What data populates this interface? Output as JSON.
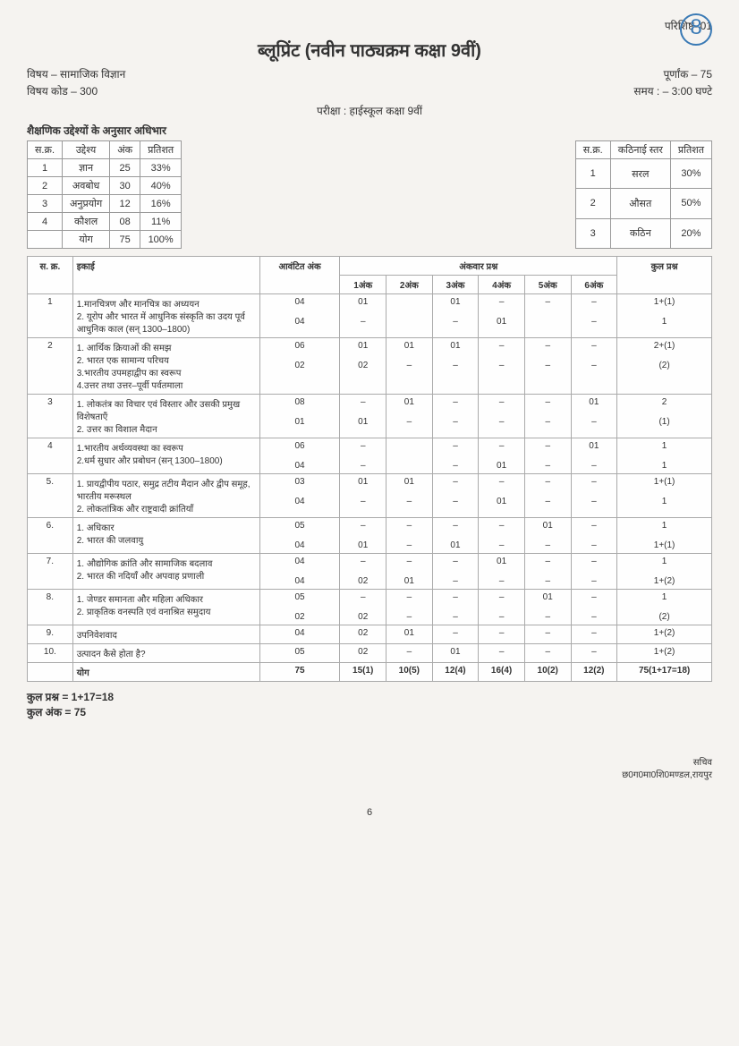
{
  "corner_mark": "8",
  "appendix": "परिशिष्ट–01",
  "title": "ब्लूप्रिंट (नवीन पाठ्यक्रम कक्षा 9वीं)",
  "subject_label": "विषय – सामाजिक विज्ञान",
  "subject_code": "विषय कोड – 300",
  "full_marks": "पूर्णांक – 75",
  "time": "समय : – 3:00 घण्टे",
  "exam_line": "परीक्षा : हाईस्कूल कक्षा 9वीं",
  "section_title": "शैक्षणिक उद्देश्यों के अनुसार अधिभार",
  "objective_table": {
    "headers": [
      "स.क्र.",
      "उद्देश्य",
      "अंक",
      "प्रतिशत"
    ],
    "rows": [
      [
        "1",
        "ज्ञान",
        "25",
        "33%"
      ],
      [
        "2",
        "अवबोध",
        "30",
        "40%"
      ],
      [
        "3",
        "अनुप्रयोग",
        "12",
        "16%"
      ],
      [
        "4",
        "कौशल",
        "08",
        "11%"
      ],
      [
        "",
        "योग",
        "75",
        "100%"
      ]
    ]
  },
  "difficulty_table": {
    "headers": [
      "स.क्र.",
      "कठिनाई स्तर",
      "प्रतिशत"
    ],
    "rows": [
      [
        "1",
        "सरल",
        "30%"
      ],
      [
        "2",
        "औसत",
        "50%"
      ],
      [
        "3",
        "कठिन",
        "20%"
      ]
    ]
  },
  "main_table": {
    "header1": [
      "स.\nक्र.",
      "इकाई",
      "आवंटित\nअंक",
      "अंकवार प्रश्न",
      "कुल प्रश्न"
    ],
    "header2": [
      "1अंक",
      "2अंक",
      "3अंक",
      "4अंक",
      "5अंक",
      "6अंक"
    ],
    "rows": [
      {
        "sn": "1",
        "unit": "1.मानचित्रण और मानचित्र का अध्ययन\n2. यूरोप और भारत में आधुनिक संस्कृति का उदय पूर्व आधुनिक काल (सन् 1300–1800)",
        "marks": [
          "04",
          "04"
        ],
        "m1": [
          "01",
          "–"
        ],
        "m2": [
          "",
          ""
        ],
        "m3": [
          "01",
          "–"
        ],
        "m4": [
          "–",
          "01"
        ],
        "m5": [
          "–",
          ""
        ],
        "m6": [
          "–",
          "–"
        ],
        "total": [
          "1+(1)",
          "1"
        ]
      },
      {
        "sn": "2",
        "unit": "1. आर्थिक क्रियाओं की समझ\n2. भारत एक सामान्य परिचय\n3.भारतीय उपमहाद्वीप का स्वरूप\n4.उत्तर तथा उत्तर–पूर्वी पर्वतमाला",
        "marks": [
          "06",
          "02"
        ],
        "m1": [
          "01",
          "02"
        ],
        "m2": [
          "01",
          "–"
        ],
        "m3": [
          "01",
          "–"
        ],
        "m4": [
          "–",
          "–"
        ],
        "m5": [
          "–",
          "–"
        ],
        "m6": [
          "–",
          "–"
        ],
        "total": [
          "2+(1)",
          "(2)"
        ]
      },
      {
        "sn": "3",
        "unit": "1. लोकतंत्र का विचार एवं विस्तार और उसकी प्रमुख विशेषताएँ\n2. उत्तर का विशाल मैदान",
        "marks": [
          "08",
          "01"
        ],
        "m1": [
          "–",
          "01"
        ],
        "m2": [
          "01",
          "–"
        ],
        "m3": [
          "–",
          "–"
        ],
        "m4": [
          "–",
          "–"
        ],
        "m5": [
          "–",
          "–"
        ],
        "m6": [
          "01",
          "–"
        ],
        "total": [
          "2",
          "(1)"
        ]
      },
      {
        "sn": "4",
        "unit": "1.भारतीय अर्थव्यवस्था का स्वरूप\n2.धर्म सुधार और प्रबोधन (सन् 1300–1800)",
        "marks": [
          "06",
          "04"
        ],
        "m1": [
          "–",
          "–"
        ],
        "m2": [
          "",
          ""
        ],
        "m3": [
          "–",
          "–"
        ],
        "m4": [
          "–",
          "01"
        ],
        "m5": [
          "–",
          "–"
        ],
        "m6": [
          "01",
          "–"
        ],
        "total": [
          "1",
          "1"
        ]
      },
      {
        "sn": "5.",
        "unit": "1. प्रायद्वीपीय पठार, समुद्र तटीय मैदान और द्वीप समूह, भारतीय मरूस्थल\n2. लोकतांत्रिक और राष्ट्रवादी क्रांतियाँ",
        "marks": [
          "03",
          "04"
        ],
        "m1": [
          "01",
          "–"
        ],
        "m2": [
          "01",
          "–"
        ],
        "m3": [
          "–",
          "–"
        ],
        "m4": [
          "–",
          "01"
        ],
        "m5": [
          "–",
          "–"
        ],
        "m6": [
          "–",
          "–"
        ],
        "total": [
          "1+(1)",
          "1"
        ]
      },
      {
        "sn": "6.",
        "unit": "1. अधिकार\n2. भारत की जलवायु",
        "marks": [
          "05",
          "04"
        ],
        "m1": [
          "–",
          "01"
        ],
        "m2": [
          "–",
          "–"
        ],
        "m3": [
          "–",
          "01"
        ],
        "m4": [
          "–",
          "–"
        ],
        "m5": [
          "01",
          "–"
        ],
        "m6": [
          "–",
          "–"
        ],
        "total": [
          "1",
          "1+(1)"
        ]
      },
      {
        "sn": "7.",
        "unit": "1. औद्योगिक क्रांति और सामाजिक बदलाव\n2. भारत की नदियाँ और अपवाह प्रणाली",
        "marks": [
          "04",
          "04"
        ],
        "m1": [
          "–",
          "02"
        ],
        "m2": [
          "–",
          "01"
        ],
        "m3": [
          "–",
          "–"
        ],
        "m4": [
          "01",
          "–"
        ],
        "m5": [
          "–",
          "–"
        ],
        "m6": [
          "–",
          "–"
        ],
        "total": [
          "1",
          "1+(2)"
        ]
      },
      {
        "sn": "8.",
        "unit": "1. जेण्डर समानता और महिला अधिकार\n2. प्राकृतिक वनस्पति एवं वनाश्रित समुदाय",
        "marks": [
          "05",
          "02"
        ],
        "m1": [
          "–",
          "02"
        ],
        "m2": [
          "–",
          "–"
        ],
        "m3": [
          "–",
          "–"
        ],
        "m4": [
          "–",
          "–"
        ],
        "m5": [
          "01",
          "–"
        ],
        "m6": [
          "–",
          "–"
        ],
        "total": [
          "1",
          "(2)"
        ]
      },
      {
        "sn": "9.",
        "unit": "उपनिवेशवाद",
        "marks": [
          "04"
        ],
        "m1": [
          "02"
        ],
        "m2": [
          "01"
        ],
        "m3": [
          "–"
        ],
        "m4": [
          "–"
        ],
        "m5": [
          "–"
        ],
        "m6": [
          "–"
        ],
        "total": [
          "1+(2)"
        ]
      },
      {
        "sn": "10.",
        "unit": "उत्पादन कैसे होता है?",
        "marks": [
          "05"
        ],
        "m1": [
          "02"
        ],
        "m2": [
          "–"
        ],
        "m3": [
          "01"
        ],
        "m4": [
          "–"
        ],
        "m5": [
          "–"
        ],
        "m6": [
          "–"
        ],
        "total": [
          "1+(2)"
        ]
      }
    ],
    "total_row": [
      "",
      "योग",
      "75",
      "15(1)",
      "10(5)",
      "12(4)",
      "16(4)",
      "10(2)",
      "12(2)",
      "75(1+17=18)"
    ]
  },
  "footer1": "कुल प्रश्न = 1+17=18",
  "footer2": "कुल अंक = 75",
  "signature1": "सचिव",
  "signature2": "छ0ग0मा0शि0मण्डल,रायपुर",
  "page_num": "6"
}
